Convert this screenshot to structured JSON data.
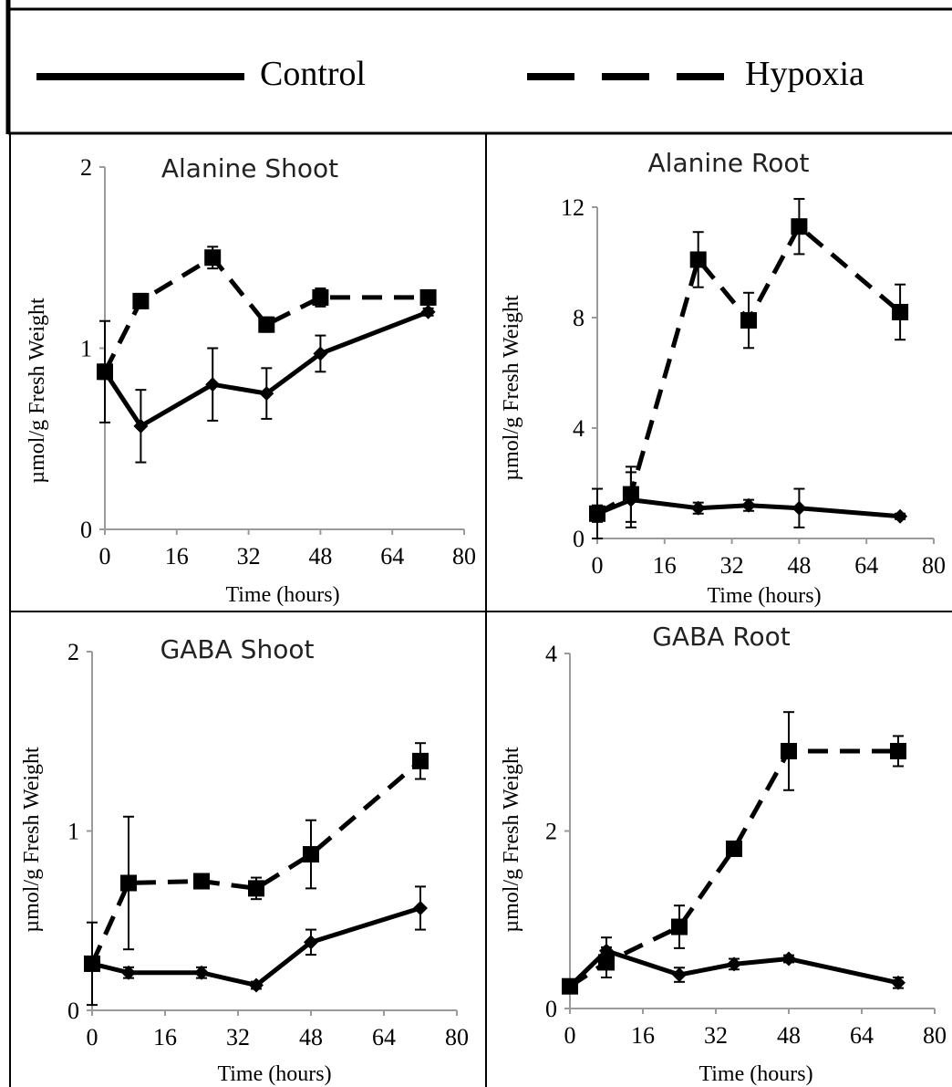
{
  "legend": {
    "control_label": "Control",
    "hypoxia_label": "Hypoxia"
  },
  "chart_data": [
    {
      "type": "line",
      "title": "Alanine Shoot",
      "xlabel": "Time (hours)",
      "ylabel": "µmol/g Fresh Weight",
      "xlim": [
        0,
        80
      ],
      "ylim": [
        0,
        2
      ],
      "x_ticks": [
        0,
        16,
        32,
        48,
        64,
        80
      ],
      "y_ticks": [
        0,
        1,
        2
      ],
      "x_tick_labels": [
        "0",
        "16",
        "32",
        "48",
        "64",
        "80"
      ],
      "y_tick_labels": [
        "0",
        "1",
        "2"
      ],
      "series": [
        {
          "name": "Control",
          "x": [
            0,
            8,
            24,
            36,
            48,
            72
          ],
          "values": [
            0.87,
            0.57,
            0.8,
            0.75,
            0.97,
            1.2
          ],
          "errors": [
            0.28,
            0.2,
            0.2,
            0.14,
            0.1,
            0.02
          ]
        },
        {
          "name": "Hypoxia",
          "x": [
            0,
            8,
            24,
            36,
            48,
            72
          ],
          "values": [
            0.87,
            1.26,
            1.5,
            1.13,
            1.28,
            1.28
          ],
          "errors": [
            0.04,
            0.04,
            0.06,
            0.04,
            0.05,
            0.04
          ]
        }
      ]
    },
    {
      "type": "line",
      "title": "Alanine Root",
      "xlabel": "Time (hours)",
      "ylabel": "µmol/g Fresh Weight",
      "xlim": [
        0,
        80
      ],
      "ylim": [
        0,
        12
      ],
      "x_ticks": [
        0,
        16,
        32,
        48,
        64,
        80
      ],
      "y_ticks": [
        0,
        4,
        8,
        12
      ],
      "x_tick_labels": [
        "0",
        "16",
        "32",
        "48",
        "64",
        "80"
      ],
      "y_tick_labels": [
        "0",
        "4",
        "8",
        "12"
      ],
      "series": [
        {
          "name": "Control",
          "x": [
            0,
            8,
            24,
            36,
            48,
            72
          ],
          "values": [
            0.9,
            1.4,
            1.1,
            1.2,
            1.1,
            0.8
          ],
          "errors": [
            0.9,
            1.0,
            0.2,
            0.2,
            0.7,
            0.1
          ]
        },
        {
          "name": "Hypoxia",
          "x": [
            0,
            8,
            24,
            36,
            48,
            72
          ],
          "values": [
            0.9,
            1.6,
            10.1,
            7.9,
            11.3,
            8.2
          ],
          "errors": [
            0.3,
            1.0,
            1.0,
            1.0,
            1.0,
            1.0
          ]
        }
      ]
    },
    {
      "type": "line",
      "title": "GABA Shoot",
      "xlabel": "Time (hours)",
      "ylabel": "µmol/g Fresh Weight",
      "xlim": [
        0,
        80
      ],
      "ylim": [
        0,
        2
      ],
      "x_ticks": [
        0,
        16,
        32,
        48,
        64,
        80
      ],
      "y_ticks": [
        0,
        1,
        2
      ],
      "x_tick_labels": [
        "0",
        "16",
        "32",
        "48",
        "64",
        "80"
      ],
      "y_tick_labels": [
        "0",
        "1",
        "2"
      ],
      "series": [
        {
          "name": "Control",
          "x": [
            0,
            8,
            24,
            36,
            48,
            72
          ],
          "values": [
            0.26,
            0.21,
            0.21,
            0.14,
            0.38,
            0.57
          ],
          "errors": [
            0.04,
            0.03,
            0.03,
            0.02,
            0.07,
            0.12
          ]
        },
        {
          "name": "Hypoxia",
          "x": [
            0,
            8,
            24,
            36,
            48,
            72
          ],
          "values": [
            0.26,
            0.71,
            0.72,
            0.68,
            0.87,
            1.39
          ],
          "errors": [
            0.23,
            0.37,
            0.04,
            0.06,
            0.19,
            0.1
          ]
        }
      ]
    },
    {
      "type": "line",
      "title": "GABA Root",
      "xlabel": "Time (hours)",
      "ylabel": "µmol/g Fresh Weight",
      "xlim": [
        0,
        80
      ],
      "ylim": [
        0,
        4
      ],
      "x_ticks": [
        0,
        16,
        32,
        48,
        64,
        80
      ],
      "y_ticks": [
        0,
        2,
        4
      ],
      "x_tick_labels": [
        "0",
        "16",
        "32",
        "48",
        "64",
        "80"
      ],
      "y_tick_labels": [
        "0",
        "2",
        "4"
      ],
      "series": [
        {
          "name": "Control",
          "x": [
            0,
            8,
            24,
            36,
            48,
            72
          ],
          "values": [
            0.25,
            0.65,
            0.38,
            0.5,
            0.56,
            0.29
          ],
          "errors": [
            0.06,
            0.15,
            0.08,
            0.06,
            0.04,
            0.06
          ]
        },
        {
          "name": "Hypoxia",
          "x": [
            0,
            8,
            24,
            36,
            48,
            72
          ],
          "values": [
            0.25,
            0.52,
            0.92,
            1.8,
            2.9,
            2.9
          ],
          "errors": [
            0.06,
            0.17,
            0.24,
            0.08,
            0.44,
            0.17
          ]
        }
      ]
    }
  ]
}
